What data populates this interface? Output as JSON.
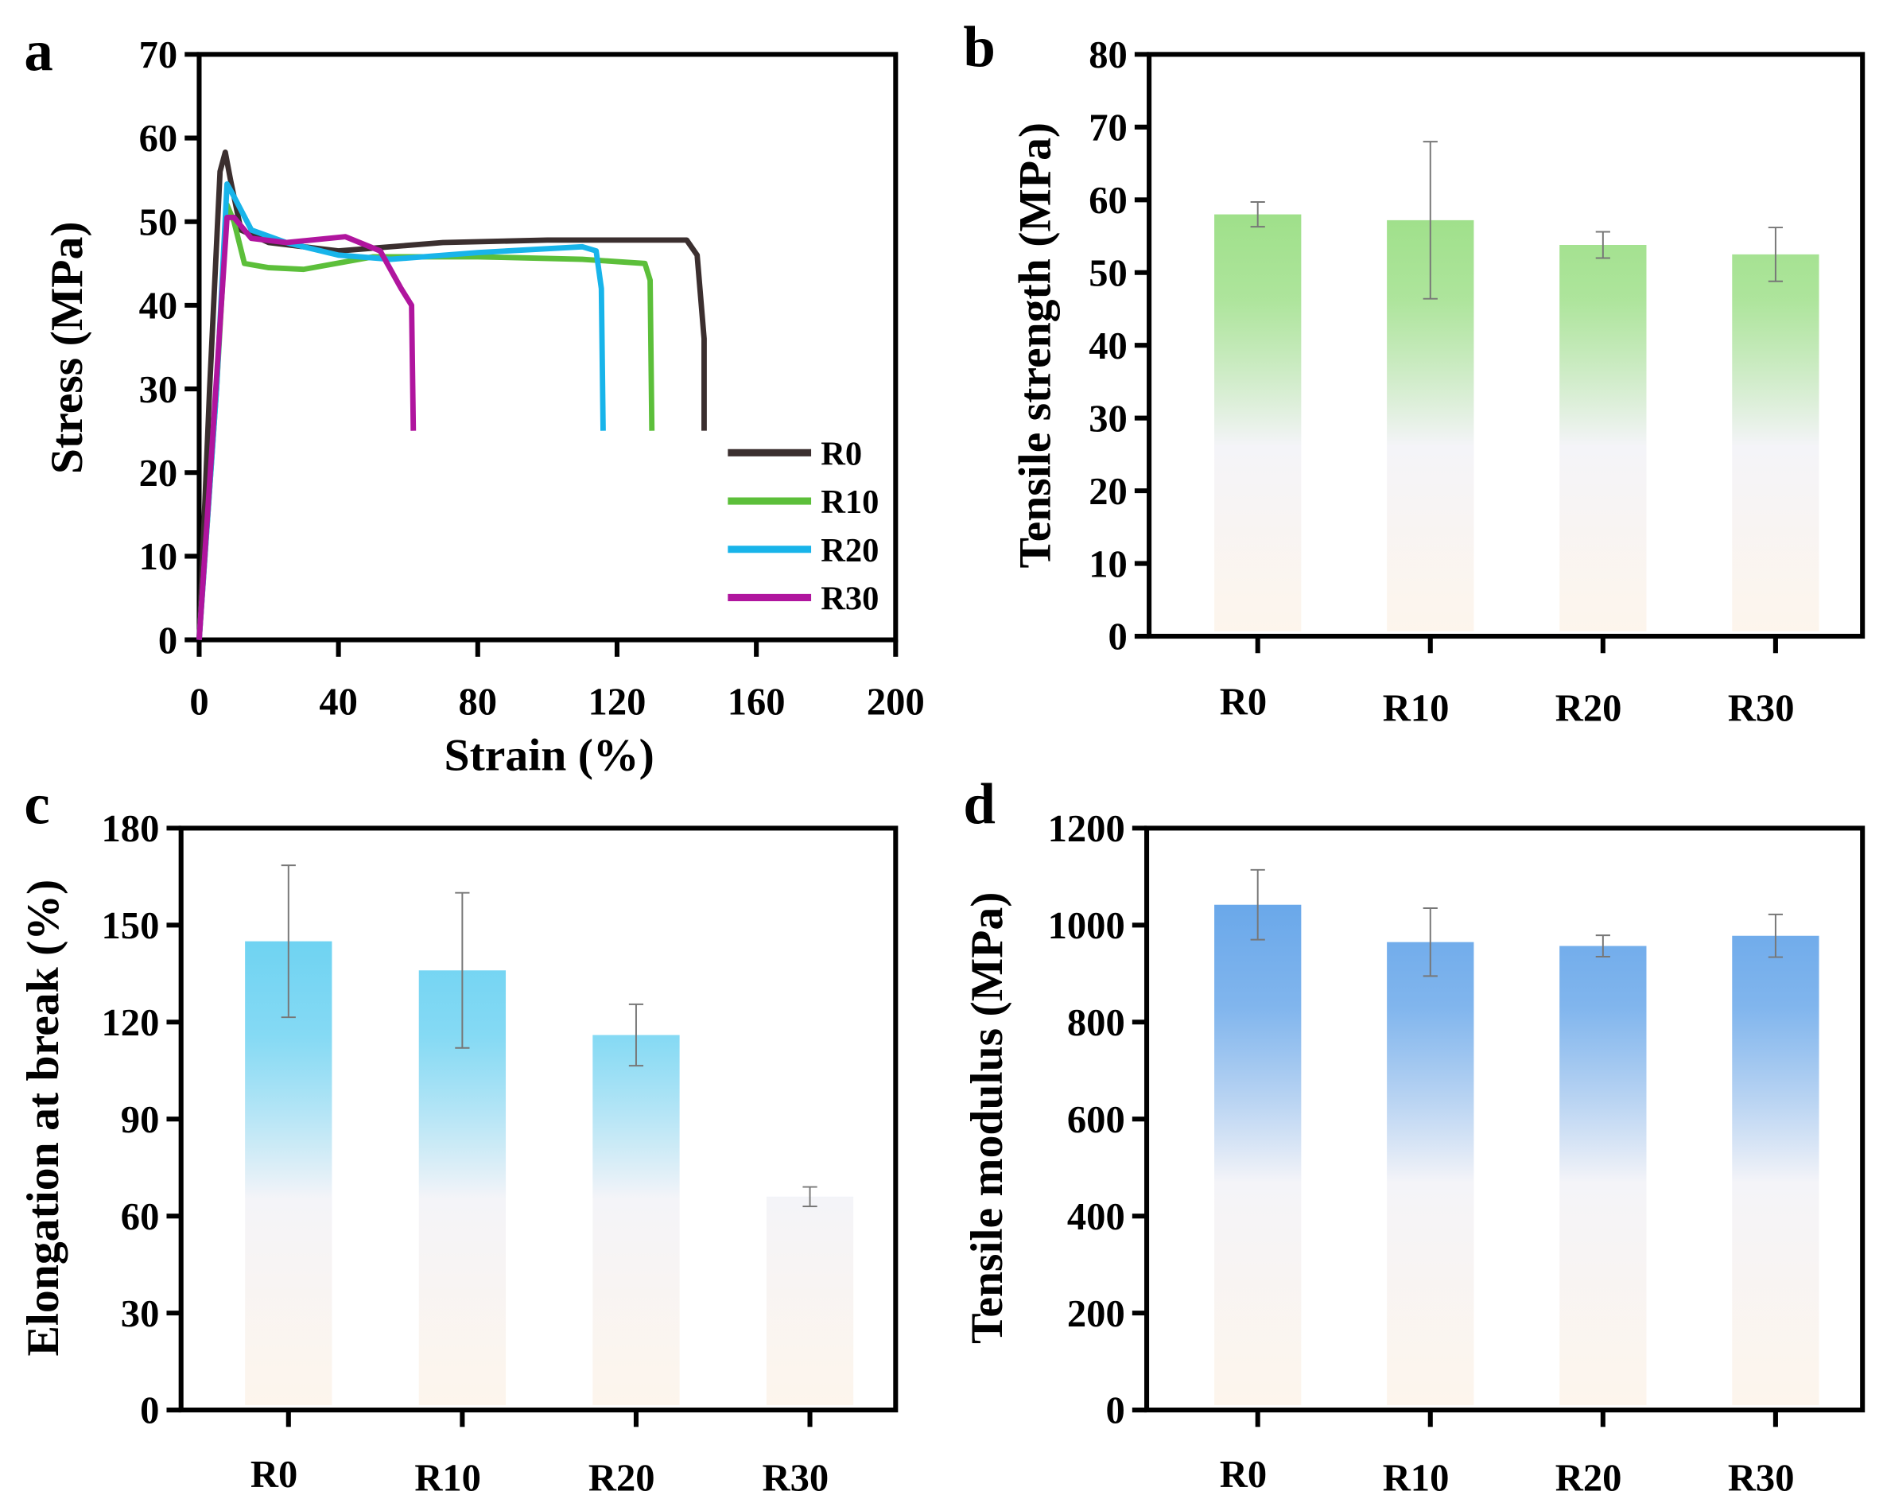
{
  "chart_data": [
    {
      "panel": "a",
      "type": "line",
      "xlabel": "Strain (%)",
      "ylabel": "Stress (MPa)",
      "xlim": [
        0,
        200
      ],
      "ylim": [
        0,
        70
      ],
      "xticks": [
        0,
        40,
        80,
        120,
        160,
        200
      ],
      "yticks": [
        0,
        10,
        20,
        30,
        40,
        50,
        60,
        70
      ],
      "legend": "bottom-right",
      "series": [
        {
          "name": "R0",
          "color": "#3b2f2f",
          "points": [
            [
              0,
              0
            ],
            [
              3,
              30
            ],
            [
              6,
              56
            ],
            [
              7.5,
              58.3
            ],
            [
              9,
              55
            ],
            [
              12,
              49
            ],
            [
              20,
              47.5
            ],
            [
              40,
              46.5
            ],
            [
              70,
              47.5
            ],
            [
              100,
              47.8
            ],
            [
              140,
              47.8
            ],
            [
              143,
              46
            ],
            [
              145,
              36
            ],
            [
              145,
              25
            ]
          ]
        },
        {
          "name": "R10",
          "color": "#5cbf3a",
          "points": [
            [
              0,
              0
            ],
            [
              5,
              30
            ],
            [
              8,
              52
            ],
            [
              10,
              50
            ],
            [
              13,
              45
            ],
            [
              20,
              44.5
            ],
            [
              30,
              44.3
            ],
            [
              50,
              45.8
            ],
            [
              80,
              45.8
            ],
            [
              110,
              45.5
            ],
            [
              128,
              45
            ],
            [
              129.5,
              43
            ],
            [
              130,
              25
            ]
          ]
        },
        {
          "name": "R20",
          "color": "#18b4ea",
          "points": [
            [
              0,
              0
            ],
            [
              5,
              30
            ],
            [
              8,
              54.5
            ],
            [
              10,
              53
            ],
            [
              15,
              49
            ],
            [
              25,
              47.5
            ],
            [
              40,
              46
            ],
            [
              55,
              45.5
            ],
            [
              80,
              46.3
            ],
            [
              110,
              47
            ],
            [
              114,
              46.5
            ],
            [
              115.5,
              42
            ],
            [
              116,
              25
            ]
          ]
        },
        {
          "name": "R30",
          "color": "#b0159e",
          "points": [
            [
              0,
              0
            ],
            [
              4,
              25
            ],
            [
              8,
              50.5
            ],
            [
              10,
              50.5
            ],
            [
              15,
              48
            ],
            [
              25,
              47.5
            ],
            [
              42,
              48.2
            ],
            [
              52,
              46.5
            ],
            [
              58,
              42
            ],
            [
              61,
              40
            ],
            [
              61.5,
              25
            ]
          ]
        }
      ]
    },
    {
      "panel": "b",
      "type": "bar",
      "ylabel": "Tensile strength (MPa)",
      "ylim": [
        0,
        80
      ],
      "yticks": [
        0,
        10,
        20,
        30,
        40,
        50,
        60,
        70,
        80
      ],
      "categories": [
        "R0",
        "R10",
        "R20",
        "R30"
      ],
      "values": [
        58,
        57.2,
        53.8,
        52.5
      ],
      "errors": [
        1.7,
        10.8,
        1.8,
        3.7
      ],
      "color": "#9fe08a"
    },
    {
      "panel": "c",
      "type": "bar",
      "ylabel": "Elongation at break (%)",
      "ylim": [
        0,
        180
      ],
      "yticks": [
        0,
        30,
        60,
        90,
        120,
        150,
        180
      ],
      "categories": [
        "R0",
        "R10",
        "R20",
        "R30"
      ],
      "values": [
        145,
        136,
        116,
        66
      ],
      "errors": [
        23.5,
        24,
        9.5,
        3
      ],
      "color": "#6fd3f2"
    },
    {
      "panel": "d",
      "type": "bar",
      "ylabel": "Tensile modulus  (MPa)",
      "ylim": [
        0,
        1200
      ],
      "yticks": [
        0,
        200,
        400,
        600,
        800,
        1000,
        1200
      ],
      "categories": [
        "R0",
        "R10",
        "R20",
        "R30"
      ],
      "values": [
        1042,
        965,
        957,
        978
      ],
      "errors": [
        72,
        70,
        22,
        44
      ],
      "color": "#6aa8ea"
    }
  ]
}
